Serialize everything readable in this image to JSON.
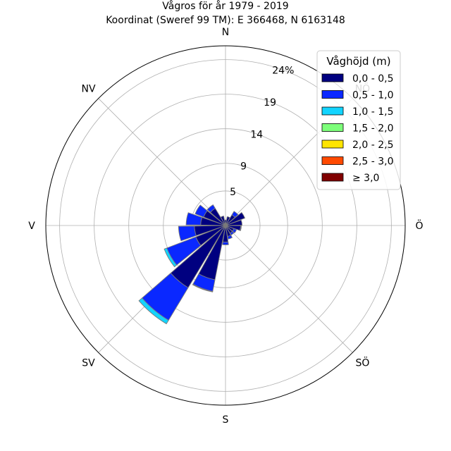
{
  "chart_data": {
    "type": "windrose",
    "title": "Vågros för år 1979 - 2019",
    "subtitle": "Koordinat (Sweref 99 TM): E 366468, N 6163148",
    "directions": [
      {
        "label": "N",
        "angle": 0
      },
      {
        "label": "NV",
        "angle": 315
      },
      {
        "label": "V",
        "angle": 270
      },
      {
        "label": "SV",
        "angle": 225
      },
      {
        "label": "S",
        "angle": 180
      },
      {
        "label": "SÖ",
        "angle": 135
      },
      {
        "label": "Ö",
        "angle": 90
      },
      {
        "label": "NÖ",
        "angle": 45
      }
    ],
    "radial_ticks": [
      5,
      9,
      14,
      19,
      24
    ],
    "radial_tick_labels": [
      "5",
      "9",
      "14",
      "19",
      "24%"
    ],
    "rmax": 26,
    "legend": {
      "title": "Våghöjd (m)",
      "placement": "top-right",
      "bins": [
        {
          "label": "0,0 - 0,5",
          "color": "#000080"
        },
        {
          "label": "0,5 - 1,0",
          "color": "#0a28ff"
        },
        {
          "label": "1,0 - 1,5",
          "color": "#12d4ff"
        },
        {
          "label": "1,5 - 2,0",
          "color": "#7dff7a"
        },
        {
          "label": "2,0 - 2,5",
          "color": "#ffe500"
        },
        {
          "label": "2,5 - 3,0",
          "color": "#ff4a00"
        },
        {
          "label": "≥ 3,0",
          "color": "#800000"
        }
      ]
    },
    "sector_width_deg": 18,
    "sectors": [
      {
        "angle": 0,
        "values": [
          0.8
        ]
      },
      {
        "angle": 20,
        "values": [
          1.3
        ]
      },
      {
        "angle": 40,
        "values": [
          1.8,
          0.6
        ]
      },
      {
        "angle": 60,
        "values": [
          3.0
        ]
      },
      {
        "angle": 80,
        "values": [
          2.4
        ]
      },
      {
        "angle": 100,
        "values": [
          2.2,
          0.1
        ]
      },
      {
        "angle": 120,
        "values": [
          1.3,
          0.4
        ]
      },
      {
        "angle": 140,
        "values": [
          1.3,
          0.3
        ]
      },
      {
        "angle": 160,
        "values": [
          1.6,
          0.4
        ]
      },
      {
        "angle": 180,
        "values": [
          2.4,
          0.4
        ]
      },
      {
        "angle": 200,
        "values": [
          8.0,
          1.7,
          0.1
        ]
      },
      {
        "angle": 220,
        "values": [
          10.5,
          5.5,
          0.6
        ]
      },
      {
        "angle": 240,
        "values": [
          4.6,
          4.5,
          0.4
        ]
      },
      {
        "angle": 260,
        "values": [
          4.5,
          2.3
        ]
      },
      {
        "angle": 280,
        "values": [
          3.6,
          2.1
        ]
      },
      {
        "angle": 300,
        "values": [
          3.4,
          1.3
        ]
      },
      {
        "angle": 320,
        "values": [
          2.9,
          0.6
        ]
      },
      {
        "angle": 340,
        "values": [
          1.4
        ]
      }
    ]
  }
}
